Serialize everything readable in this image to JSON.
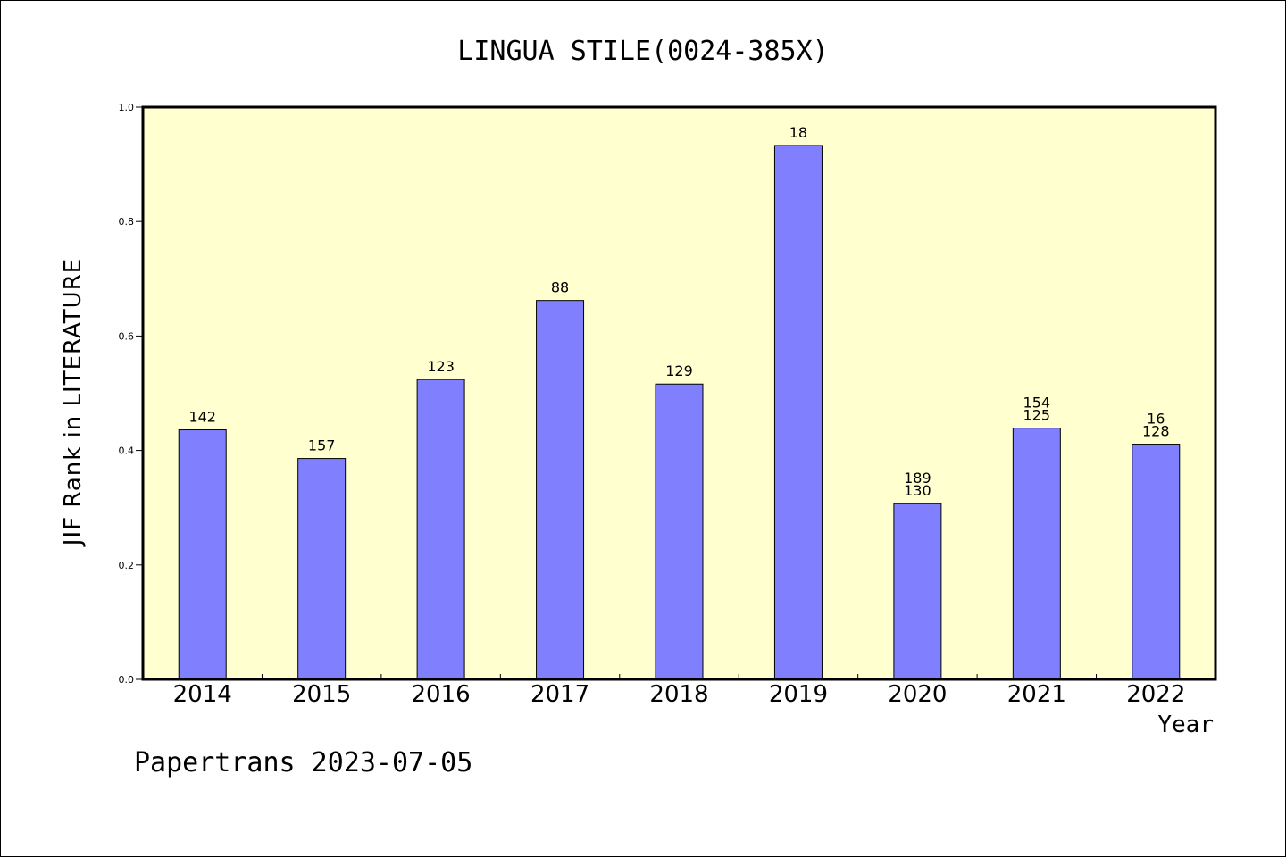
{
  "chart_data": {
    "type": "bar",
    "title": "LINGUA STILE(0024-385X)",
    "xlabel": "Year",
    "ylabel": "JIF Rank in LITERATURE",
    "ylim": [
      0,
      1.0
    ],
    "yticks": [
      "0.0",
      "0.2",
      "0.4",
      "0.6",
      "0.8",
      "1.0"
    ],
    "grid": false,
    "categories": [
      "2014",
      "2015",
      "2016",
      "2017",
      "2018",
      "2019",
      "2020",
      "2021",
      "2022"
    ],
    "values": [
      0.436,
      0.386,
      0.524,
      0.662,
      0.516,
      0.933,
      0.307,
      0.439,
      0.411
    ],
    "labels": [
      [
        "142"
      ],
      [
        "157"
      ],
      [
        "123"
      ],
      [
        "88"
      ],
      [
        "129"
      ],
      [
        "18"
      ],
      [
        "189",
        "130"
      ],
      [
        "154",
        "125"
      ],
      [
        "16",
        "128"
      ]
    ],
    "colors": {
      "bar_fill": "#8080ff",
      "plot_bg": "#ffffd0",
      "axis": "#000000"
    }
  },
  "footer": {
    "watermark": "Papertrans 2023-07-05"
  }
}
